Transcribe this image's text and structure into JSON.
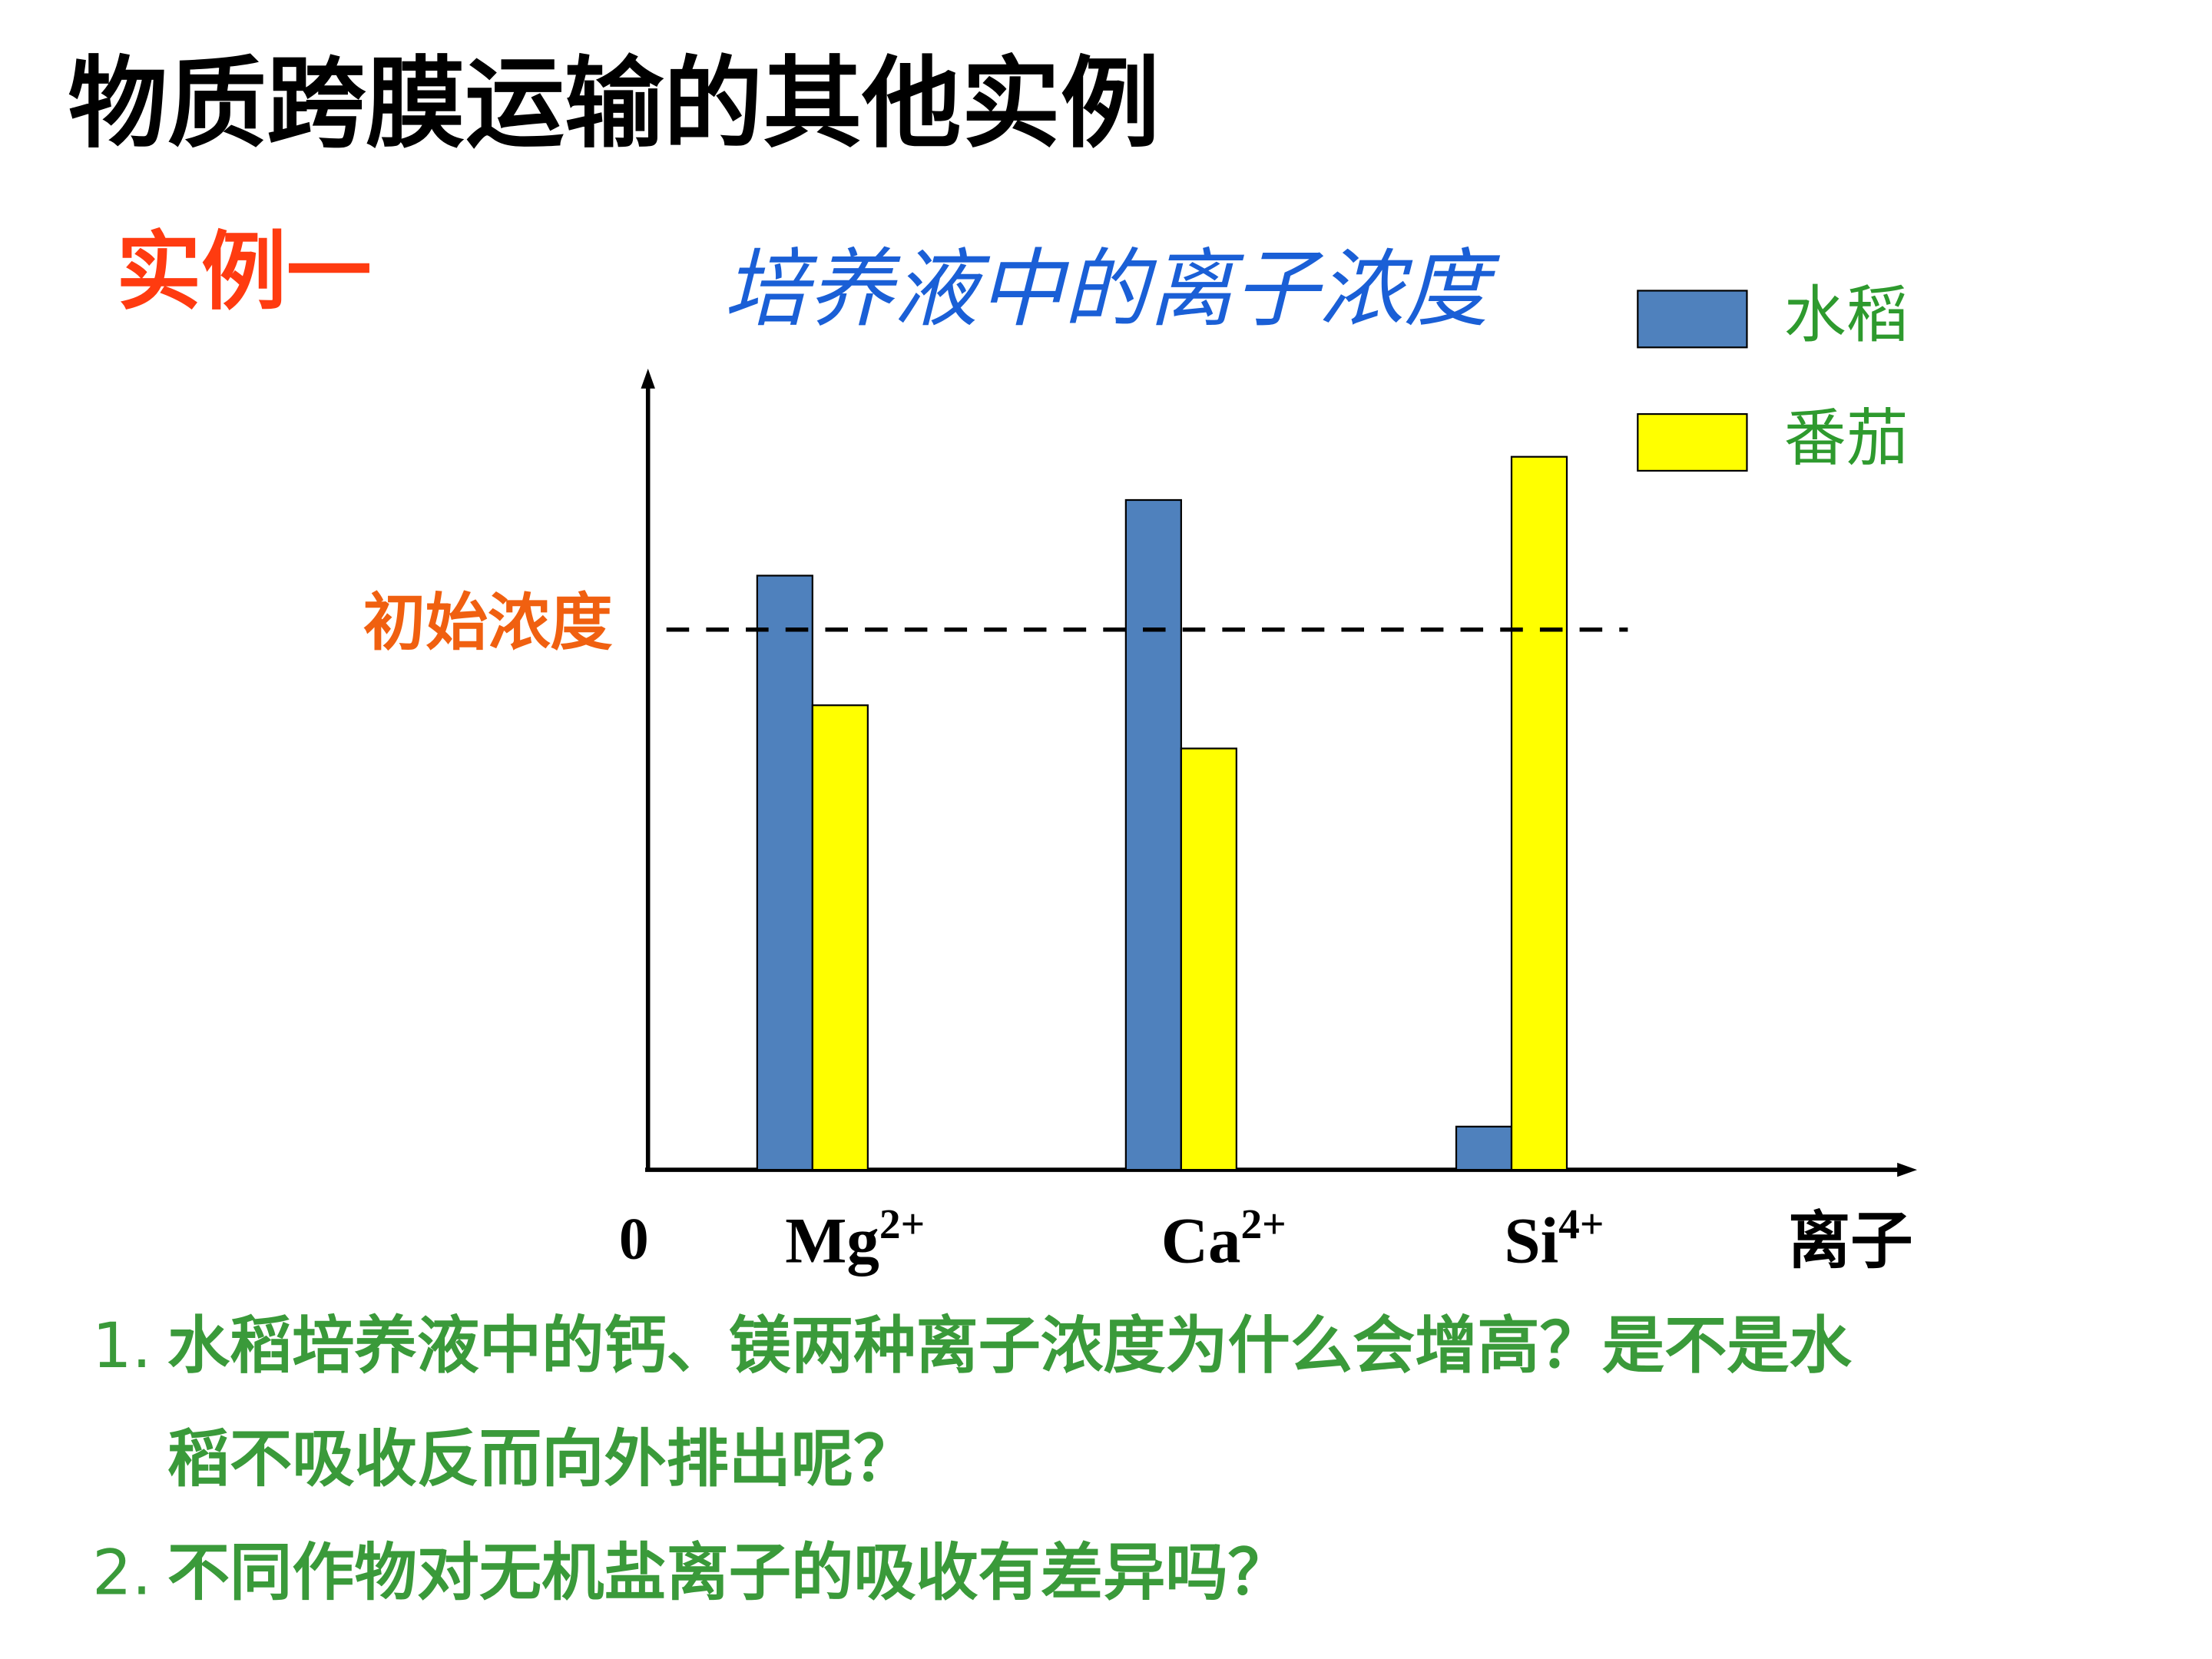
{
  "header": {
    "title": "物质跨膜运输的其他实例",
    "subtitle": "实例一"
  },
  "chart_data": {
    "type": "bar",
    "title": "培养液中的离子浓度",
    "categories": [
      {
        "symbol": "Mg",
        "charge": "2+"
      },
      {
        "symbol": "Ca",
        "charge": "2+"
      },
      {
        "symbol": "Si",
        "charge": "4+"
      }
    ],
    "x_label": "离子",
    "series": [
      {
        "name": "水稻",
        "color": "#4f81bd",
        "values": [
          110,
          124,
          8
        ]
      },
      {
        "name": "番茄",
        "color": "#ffff00",
        "values": [
          86,
          78,
          132
        ]
      }
    ],
    "ylim": [
      0,
      147
    ],
    "yticks": [
      0
    ],
    "reference_line": {
      "value": 100,
      "label": "初始浓度"
    },
    "legend": "top-right",
    "grid": false
  },
  "questions": [
    {
      "number": "1.",
      "lines": [
        "水稻培养液中的钙、镁两种离子浓度为什么会增高？是不是水",
        "稻不吸收反而向外排出呢？"
      ]
    },
    {
      "number": "2.",
      "lines": [
        "不同作物对无机盐离子的吸收有差异吗？"
      ]
    }
  ]
}
